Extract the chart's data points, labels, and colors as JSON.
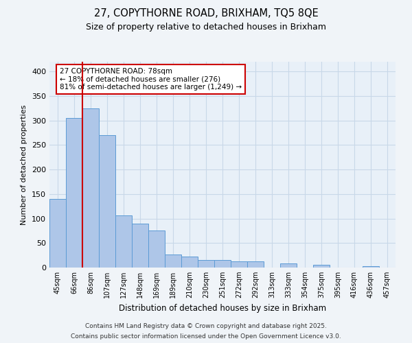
{
  "title": "27, COPYTHORNE ROAD, BRIXHAM, TQ5 8QE",
  "subtitle": "Size of property relative to detached houses in Brixham",
  "xlabel": "Distribution of detached houses by size in Brixham",
  "ylabel": "Number of detached properties",
  "footnote1": "Contains HM Land Registry data © Crown copyright and database right 2025.",
  "footnote2": "Contains public sector information licensed under the Open Government Licence v3.0.",
  "annotation_line1": "27 COPYTHORNE ROAD: 78sqm",
  "annotation_line2": "← 18% of detached houses are smaller (276)",
  "annotation_line3": "81% of semi-detached houses are larger (1,249) →",
  "categories": [
    "45sqm",
    "66sqm",
    "86sqm",
    "107sqm",
    "127sqm",
    "148sqm",
    "169sqm",
    "189sqm",
    "210sqm",
    "230sqm",
    "251sqm",
    "272sqm",
    "292sqm",
    "313sqm",
    "333sqm",
    "354sqm",
    "375sqm",
    "395sqm",
    "416sqm",
    "436sqm",
    "457sqm"
  ],
  "values": [
    140,
    305,
    325,
    270,
    107,
    90,
    75,
    27,
    22,
    15,
    15,
    13,
    13,
    0,
    8,
    0,
    5,
    0,
    0,
    3,
    0
  ],
  "bar_color": "#aec6e8",
  "bar_edge_color": "#5b9bd5",
  "vline_color": "#cc0000",
  "vline_pos": 1.5,
  "grid_color": "#c8d8e8",
  "background_color": "#f0f4f8",
  "plot_bg_color": "#e8f0f8",
  "annotation_box_color": "#cc0000",
  "annotation_fill": "#ffffff",
  "ylim": [
    0,
    420
  ],
  "yticks": [
    0,
    50,
    100,
    150,
    200,
    250,
    300,
    350,
    400
  ]
}
